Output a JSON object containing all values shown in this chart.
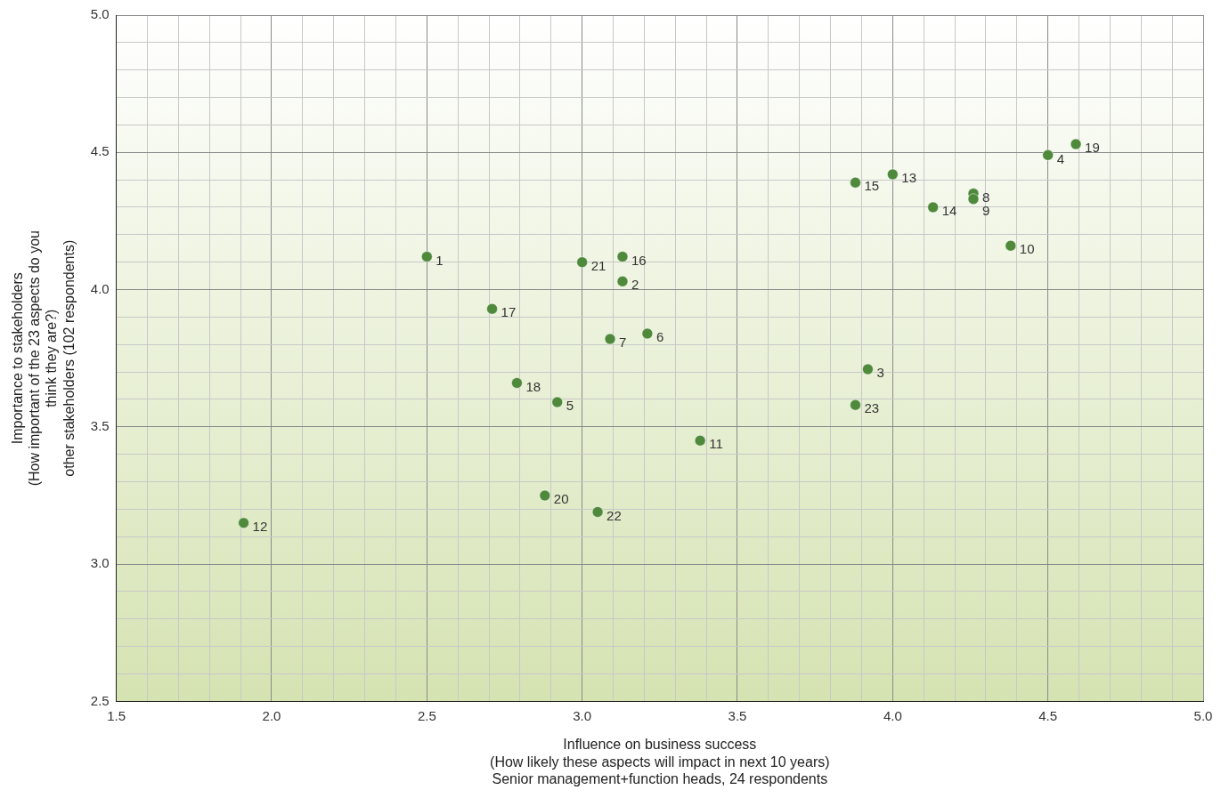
{
  "chart_data": {
    "type": "scatter",
    "xlabel": "Influence on business success\n(How likely these aspects will impact in next 10 years)\nSenior management+function heads, 24 respondents",
    "ylabel": "Importance to stakeholders\n(How important of the 23 aspects do you\nthink they are?)\nother stakeholders (102 respondents)",
    "series": [
      {
        "color": "#4f8a3c",
        "x": [
          2.5,
          3.13,
          3.92,
          4.5,
          2.92,
          3.21,
          3.09,
          4.26,
          4.26,
          4.38,
          3.38,
          1.91,
          4.0,
          4.13,
          3.88,
          3.13,
          2.71,
          2.79,
          4.59,
          2.88,
          3.0,
          3.05,
          3.88
        ],
        "values": [
          4.12,
          4.03,
          3.71,
          4.49,
          3.59,
          3.84,
          3.82,
          4.35,
          4.33,
          4.16,
          3.45,
          3.15,
          4.42,
          4.3,
          4.39,
          4.12,
          3.93,
          3.66,
          4.53,
          3.25,
          4.1,
          3.19,
          3.58
        ]
      }
    ],
    "annotations": [
      {
        "text": "1",
        "x": 2.5,
        "y": 4.12
      },
      {
        "text": "2",
        "x": 3.13,
        "y": 4.03
      },
      {
        "text": "3",
        "x": 3.92,
        "y": 3.71
      },
      {
        "text": "4",
        "x": 4.5,
        "y": 4.49
      },
      {
        "text": "5",
        "x": 2.92,
        "y": 3.59
      },
      {
        "text": "6",
        "x": 3.21,
        "y": 3.84
      },
      {
        "text": "7",
        "x": 3.09,
        "y": 3.82
      },
      {
        "text": "8",
        "x": 4.26,
        "y": 4.35
      },
      {
        "text": "9",
        "x": 4.26,
        "y": 4.33
      },
      {
        "text": "10",
        "x": 4.38,
        "y": 4.16
      },
      {
        "text": "11",
        "x": 3.38,
        "y": 3.45
      },
      {
        "text": "12",
        "x": 1.91,
        "y": 3.15
      },
      {
        "text": "13",
        "x": 4.0,
        "y": 4.42
      },
      {
        "text": "14",
        "x": 4.13,
        "y": 4.3
      },
      {
        "text": "15",
        "x": 3.88,
        "y": 4.39
      },
      {
        "text": "16",
        "x": 3.13,
        "y": 4.12
      },
      {
        "text": "17",
        "x": 2.71,
        "y": 3.93
      },
      {
        "text": "18",
        "x": 2.79,
        "y": 3.66
      },
      {
        "text": "19",
        "x": 4.59,
        "y": 4.53
      },
      {
        "text": "20",
        "x": 2.88,
        "y": 3.25
      },
      {
        "text": "21",
        "x": 3.0,
        "y": 4.1
      },
      {
        "text": "22",
        "x": 3.05,
        "y": 3.19
      },
      {
        "text": "23",
        "x": 3.88,
        "y": 3.58
      }
    ],
    "xlim": [
      1.5,
      5.0
    ],
    "xticks": [
      {
        "value": 1.5,
        "label": "1.5"
      },
      {
        "value": 1.6,
        "label": null
      },
      {
        "value": 1.7,
        "label": null
      },
      {
        "value": 1.8,
        "label": null
      },
      {
        "value": 1.9,
        "label": null
      },
      {
        "value": 2.0,
        "label": "2.0"
      },
      {
        "value": 2.1,
        "label": null
      },
      {
        "value": 2.2,
        "label": null
      },
      {
        "value": 2.3,
        "label": null
      },
      {
        "value": 2.4,
        "label": null
      },
      {
        "value": 2.5,
        "label": "2.5"
      },
      {
        "value": 2.6,
        "label": null
      },
      {
        "value": 2.7,
        "label": null
      },
      {
        "value": 2.8,
        "label": null
      },
      {
        "value": 2.9,
        "label": null
      },
      {
        "value": 3.0,
        "label": "3.0"
      },
      {
        "value": 3.1,
        "label": null
      },
      {
        "value": 3.2,
        "label": null
      },
      {
        "value": 3.3,
        "label": null
      },
      {
        "value": 3.4,
        "label": null
      },
      {
        "value": 3.5,
        "label": "3.5"
      },
      {
        "value": 3.6,
        "label": null
      },
      {
        "value": 3.7,
        "label": null
      },
      {
        "value": 3.8,
        "label": null
      },
      {
        "value": 3.9,
        "label": null
      },
      {
        "value": 4.0,
        "label": "4.0"
      },
      {
        "value": 4.1,
        "label": null
      },
      {
        "value": 4.2,
        "label": null
      },
      {
        "value": 4.3,
        "label": null
      },
      {
        "value": 4.4,
        "label": null
      },
      {
        "value": 4.5,
        "label": "4.5"
      },
      {
        "value": 4.6,
        "label": null
      },
      {
        "value": 4.7,
        "label": null
      },
      {
        "value": 4.8,
        "label": null
      },
      {
        "value": 4.9,
        "label": null
      },
      {
        "value": 5.0,
        "label": "5.0"
      }
    ],
    "ylim": [
      2.5,
      5.0
    ],
    "yticks": [
      {
        "value": 2.5,
        "label": "2.5"
      },
      {
        "value": 2.6,
        "label": null
      },
      {
        "value": 2.7,
        "label": null
      },
      {
        "value": 2.8,
        "label": null
      },
      {
        "value": 2.9,
        "label": null
      },
      {
        "value": 3.0,
        "label": "3.0"
      },
      {
        "value": 3.1,
        "label": null
      },
      {
        "value": 3.2,
        "label": null
      },
      {
        "value": 3.3,
        "label": null
      },
      {
        "value": 3.4,
        "label": null
      },
      {
        "value": 3.5,
        "label": "3.5"
      },
      {
        "value": 3.6,
        "label": null
      },
      {
        "value": 3.7,
        "label": null
      },
      {
        "value": 3.8,
        "label": null
      },
      {
        "value": 3.9,
        "label": null
      },
      {
        "value": 4.0,
        "label": "4.0"
      },
      {
        "value": 4.1,
        "label": null
      },
      {
        "value": 4.2,
        "label": null
      },
      {
        "value": 4.3,
        "label": null
      },
      {
        "value": 4.4,
        "label": null
      },
      {
        "value": 4.5,
        "label": "4.5"
      },
      {
        "value": 4.6,
        "label": null
      },
      {
        "value": 4.7,
        "label": null
      },
      {
        "value": 4.8,
        "label": null
      },
      {
        "value": 4.9,
        "label": null
      },
      {
        "value": 5.0,
        "label": "5.0"
      }
    ],
    "grid": true,
    "legend": false,
    "marker": "circle"
  }
}
